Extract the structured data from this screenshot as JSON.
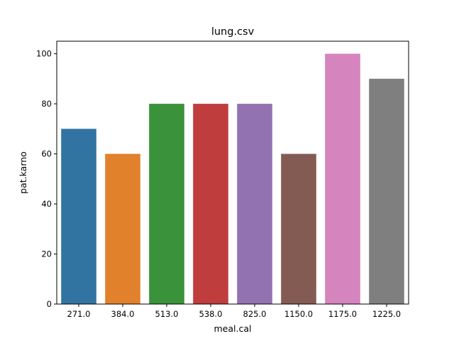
{
  "chart_data": {
    "type": "bar",
    "title": "lung.csv",
    "xlabel": "meal.cal",
    "ylabel": "pat.karno",
    "categories": [
      "271.0",
      "384.0",
      "513.0",
      "538.0",
      "825.0",
      "1150.0",
      "1175.0",
      "1225.0"
    ],
    "values": [
      70,
      60,
      80,
      80,
      80,
      60,
      100,
      90
    ],
    "ylim": [
      0,
      105
    ],
    "yticks": [
      0,
      20,
      40,
      60,
      80,
      100
    ],
    "grid": false,
    "colors": [
      "#3274a1",
      "#e1812c",
      "#3a923a",
      "#c03d3e",
      "#9372b2",
      "#845b53",
      "#d684bd",
      "#7f7f7f"
    ]
  }
}
